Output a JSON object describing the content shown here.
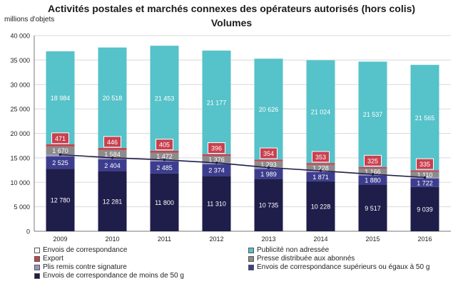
{
  "title": "Activités postales et marchés connexes des opérateurs autorisés (hors colis)",
  "subtitle": "Volumes",
  "chart_data": {
    "type": "bar",
    "stacked": true,
    "unit_label": "millions d'objets",
    "categories": [
      "2009",
      "2010",
      "2011",
      "2012",
      "2013",
      "2014",
      "2015",
      "2016"
    ],
    "ylim": [
      0,
      40000
    ],
    "yticks": [
      0,
      5000,
      10000,
      15000,
      20000,
      25000,
      30000,
      35000,
      40000
    ],
    "ytick_labels": [
      "0",
      "5 000",
      "10 000",
      "15 000",
      "20 000",
      "25 000",
      "30 000",
      "35 000",
      "40 000"
    ],
    "grid": true,
    "series": [
      {
        "name": "Envois de correspondance de moins de 50 g",
        "color": "#1f1d4a",
        "label_color": "#ffffff",
        "values": [
          12780,
          12281,
          11800,
          11310,
          10735,
          10228,
          9517,
          9039
        ],
        "labels": [
          "12 780",
          "12 281",
          "11 800",
          "11 310",
          "10 735",
          "10 228",
          "9 517",
          "9 039"
        ]
      },
      {
        "name": "Envois de correspondance supérieurs ou égaux à 50 g",
        "color": "#3d3d8f",
        "label_color": "#ffffff",
        "values": [
          2525,
          2404,
          2485,
          2374,
          1989,
          1871,
          1880,
          1722
        ],
        "labels": [
          "2 525",
          "2 404",
          "2 485",
          "2 374",
          "1 989",
          "1 871",
          "1 880",
          "1 722"
        ]
      },
      {
        "name": "Plis remis contre signature",
        "color": "#9a93c2",
        "label_color": "#ffffff",
        "values": [
          350,
          330,
          310,
          300,
          280,
          260,
          250,
          240
        ],
        "labels": null
      },
      {
        "name": "Presse distribuée aux abonnés",
        "color": "#8c8c8c",
        "label_color": "#ffffff",
        "values": [
          1670,
          1584,
          1472,
          1376,
          1293,
          1228,
          1166,
          1110
        ],
        "labels": [
          "1 670",
          "1 584",
          "1 472",
          "1 376",
          "1 293",
          "1 228",
          "1 166",
          "1 110"
        ]
      },
      {
        "name": "Export",
        "color": "#c9404f",
        "label_color": "#ffffff",
        "values": [
          471,
          446,
          405,
          396,
          354,
          353,
          325,
          335
        ],
        "labels": [
          "471",
          "446",
          "405",
          "396",
          "354",
          "353",
          "325",
          "335"
        ]
      },
      {
        "name": "Publicité non adressée",
        "color": "#56c2c9",
        "label_color": "#ffffff",
        "values": [
          18984,
          20518,
          21453,
          21177,
          20626,
          21024,
          21537,
          21565
        ],
        "labels": [
          "18 984",
          "20 518",
          "21 453",
          "21 177",
          "20 626",
          "21 024",
          "21 537",
          "21 565"
        ]
      }
    ],
    "line_series": {
      "name": "Envois de correspondance",
      "color": "#1f1d4a",
      "values": [
        15655,
        15015,
        14595,
        13984,
        13004,
        12359,
        11647,
        11001
      ]
    },
    "legend": [
      {
        "label": "Envois de correspondance",
        "color": "#ffffff",
        "kind": "line"
      },
      {
        "label": "Publicité non adressée",
        "color": "#56c2c9",
        "kind": "box"
      },
      {
        "label": "Export",
        "color": "#c9404f",
        "kind": "box"
      },
      {
        "label": "Presse distribuée aux abonnés",
        "color": "#8c8c8c",
        "kind": "box"
      },
      {
        "label": "Plis remis contre signature",
        "color": "#9a93c2",
        "kind": "box"
      },
      {
        "label": "Envois de correspondance supérieurs ou égaux à 50 g",
        "color": "#3d3d8f",
        "kind": "box"
      },
      {
        "label": "Envois de correspondance de moins de 50 g",
        "color": "#1f1d4a",
        "kind": "box"
      }
    ]
  }
}
